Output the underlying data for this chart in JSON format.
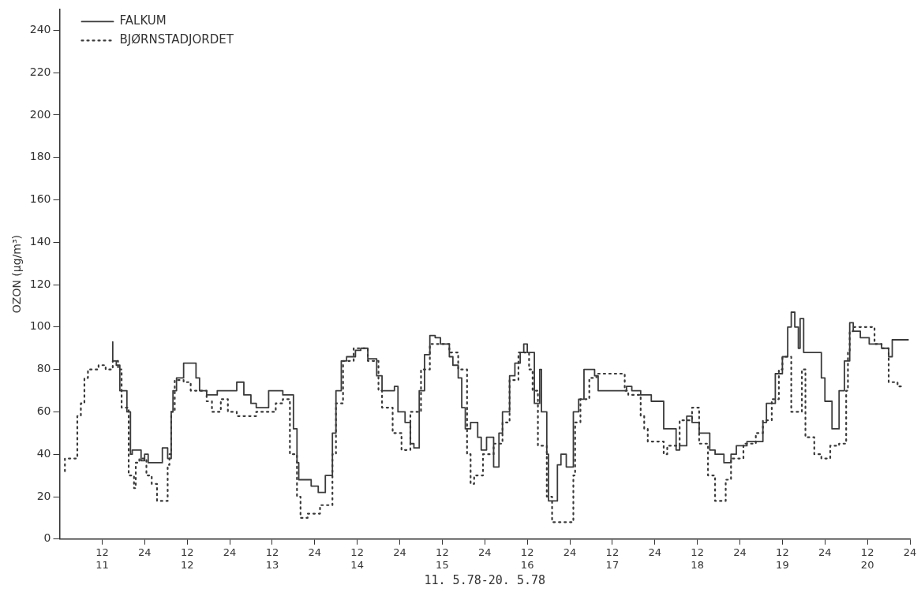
{
  "chart_data": {
    "type": "step",
    "xlabel": "11. 5.78-20. 5.78",
    "ylabel": "OZON (µg/m³)",
    "xlim": [
      "--05-11T00:00",
      "--05-21T00:00"
    ],
    "ylim": [
      0,
      250
    ],
    "xticks": [
      {
        "value": "--05-11T12:00",
        "label": "12\n11"
      },
      {
        "value": "--05-12T00:00",
        "label": "24"
      },
      {
        "value": "--05-12T12:00",
        "label": "12\n12"
      },
      {
        "value": "--05-13T00:00",
        "label": "24"
      },
      {
        "value": "--05-13T12:00",
        "label": "12\n13"
      },
      {
        "value": "--05-14T00:00",
        "label": "24"
      },
      {
        "value": "--05-14T12:00",
        "label": "12\n14"
      },
      {
        "value": "--05-15T00:00",
        "label": "24"
      },
      {
        "value": "--05-15T12:00",
        "label": "12\n15"
      },
      {
        "value": "--05-16T00:00",
        "label": "24"
      },
      {
        "value": "--05-16T12:00",
        "label": "12\n16"
      },
      {
        "value": "--05-17T00:00",
        "label": "24"
      },
      {
        "value": "--05-17T12:00",
        "label": "12\n17"
      },
      {
        "value": "--05-18T00:00",
        "label": "24"
      },
      {
        "value": "--05-18T12:00",
        "label": "12\n18"
      },
      {
        "value": "--05-19T00:00",
        "label": "24"
      },
      {
        "value": "--05-19T12:00",
        "label": "12\n19"
      },
      {
        "value": "--05-20T00:00",
        "label": "24"
      },
      {
        "value": "--05-20T12:00",
        "label": "12\n20"
      },
      {
        "value": "--05-21T00:00",
        "label": "24"
      }
    ],
    "yticks": [
      0,
      20,
      40,
      60,
      80,
      100,
      120,
      140,
      160,
      180,
      200,
      220,
      240
    ],
    "grid": false,
    "legend": "top left",
    "marker": "none",
    "series": [
      {
        "name": "FALKUM",
        "color": "#3a3a3a",
        "line_style": "solid",
        "x": [
          "--05-11T15:00",
          "--05-11T16:00",
          "--05-11T17:00",
          "--05-11T19:00",
          "--05-11T20:00",
          "--05-11T20:30",
          "--05-11T23:00",
          "--05-12T00:00",
          "--05-12T01:00",
          "--05-12T05:00",
          "--05-12T06:30",
          "--05-12T07:30",
          "--05-12T08:00",
          "--05-12T09:00",
          "--05-12T11:00",
          "--05-12T14:30",
          "--05-12T15:30",
          "--05-12T17:30",
          "--05-12T20:30",
          "--05-13T02:00",
          "--05-13T04:00",
          "--05-13T06:00",
          "--05-13T07:30",
          "--05-13T11:00",
          "--05-13T15:00",
          "--05-13T18:00",
          "--05-13T19:00",
          "--05-13T19:30",
          "--05-13T20:30",
          "--05-13T23:00",
          "--05-14T01:00",
          "--05-14T03:00",
          "--05-14T05:00",
          "--05-14T06:00",
          "--05-14T07:30",
          "--05-14T09:00",
          "--05-14T11:30",
          "--05-14T13:00",
          "--05-14T15:00",
          "--05-14T17:30",
          "--05-14T19:00",
          "--05-14T22:30",
          "--05-14T23:30",
          "--05-15T01:30",
          "--05-15T03:00",
          "--05-15T04:00",
          "--05-15T05:30",
          "--05-15T07:00",
          "--05-15T08:30",
          "--05-15T10:00",
          "--05-15T11:30",
          "--05-15T14:00",
          "--05-15T15:00",
          "--05-15T16:30",
          "--05-15T17:30",
          "--05-15T18:30",
          "--05-15T20:00",
          "--05-15T22:00",
          "--05-15T23:00",
          "--05-16T00:30",
          "--05-16T02:30",
          "--05-16T04:00",
          "--05-16T05:00",
          "--05-16T07:00",
          "--05-16T08:30",
          "--05-16T10:00",
          "--05-16T11:00",
          "--05-16T12:00",
          "--05-16T14:00",
          "--05-16T15:30",
          "--05-16T16:00",
          "--05-16T17:30",
          "--05-16T18:00",
          "--05-16T20:30",
          "--05-16T21:30",
          "--05-16T23:00",
          "--05-17T01:00",
          "--05-17T02:30",
          "--05-17T04:00",
          "--05-17T07:00",
          "--05-17T08:00",
          "--05-17T16:00",
          "--05-17T17:30",
          "--05-17T20:00",
          "--05-17T23:00",
          "--05-18T02:30",
          "--05-18T06:00",
          "--05-18T07:00",
          "--05-18T09:00",
          "--05-18T10:30",
          "--05-18T12:30",
          "--05-18T15:30",
          "--05-18T17:00",
          "--05-18T19:30",
          "--05-18T21:30",
          "--05-18T23:00",
          "--05-19T02:00",
          "--05-19T06:30",
          "--05-19T07:30",
          "--05-19T10:00",
          "--05-19T12:00",
          "--05-19T13:30",
          "--05-19T14:30",
          "--05-19T15:30",
          "--05-19T16:30",
          "--05-19T17:00",
          "--05-19T18:00",
          "--05-19T20:00",
          "--05-19T23:00",
          "--05-20T00:00",
          "--05-20T02:00",
          "--05-20T04:00",
          "--05-20T05:30",
          "--05-20T07:00",
          "--05-20T08:00",
          "--05-20T10:00",
          "--05-20T12:30",
          "--05-20T16:00",
          "--05-20T18:00",
          "--05-20T19:00",
          "--05-20T21:00",
          "--05-20T23:30"
        ],
        "values": [
          93,
          84,
          82,
          70,
          60,
          40,
          42,
          37,
          40,
          36,
          43,
          38,
          60,
          70,
          76,
          83,
          76,
          70,
          68,
          70,
          74,
          68,
          64,
          62,
          70,
          68,
          52,
          36,
          28,
          28,
          25,
          22,
          30,
          50,
          70,
          84,
          86,
          89,
          90,
          85,
          77,
          70,
          72,
          60,
          55,
          45,
          43,
          70,
          87,
          96,
          95,
          92,
          86,
          82,
          76,
          62,
          52,
          55,
          48,
          42,
          48,
          34,
          50,
          60,
          77,
          83,
          88,
          92,
          88,
          64,
          80,
          60,
          40,
          18,
          35,
          40,
          34,
          60,
          66,
          80,
          77,
          70,
          72,
          70,
          68,
          65,
          52,
          42,
          44,
          58,
          55,
          50,
          42,
          40,
          36,
          40,
          44,
          46,
          55,
          64,
          78,
          86,
          100,
          107,
          100,
          90,
          104,
          88,
          88,
          76,
          65,
          52,
          70,
          84,
          102,
          98,
          95,
          92,
          90,
          86,
          94,
          94
        ]
      },
      {
        "name": "BJØRNSTADJORDET",
        "color": "#3a3a3a",
        "line_style": "dotted",
        "x": [
          "--05-11T01:30",
          "--05-11T02:00",
          "--05-11T05:00",
          "--05-11T06:00",
          "--05-11T07:00",
          "--05-11T08:00",
          "--05-11T11:00",
          "--05-11T13:00",
          "--05-11T15:00",
          "--05-11T16:30",
          "--05-11T17:30",
          "--05-11T19:30",
          "--05-11T21:00",
          "--05-11T21:30",
          "--05-11T22:30",
          "--05-12T00:30",
          "--05-12T02:00",
          "--05-12T03:30",
          "--05-12T06:30",
          "--05-12T07:00",
          "--05-12T07:30",
          "--05-12T08:30",
          "--05-12T11:00",
          "--05-12T13:00",
          "--05-12T14:30",
          "--05-12T17:30",
          "--05-12T19:00",
          "--05-12T21:30",
          "--05-12T23:30",
          "--05-13T02:00",
          "--05-13T07:30",
          "--05-13T13:00",
          "--05-13T15:00",
          "--05-13T17:00",
          "--05-13T19:00",
          "--05-13T20:00",
          "--05-13T22:00",
          "--05-14T01:30",
          "--05-14T05:00",
          "--05-14T06:00",
          "--05-14T08:00",
          "--05-14T11:00",
          "--05-14T15:00",
          "--05-14T18:00",
          "--05-14T19:00",
          "--05-14T22:00",
          "--05-15T00:30",
          "--05-15T03:00",
          "--05-15T06:00",
          "--05-15T08:30",
          "--05-15T11:00",
          "--05-15T14:00",
          "--05-15T16:30",
          "--05-15T19:00",
          "--05-15T20:00",
          "--05-15T21:00",
          "--05-15T23:30",
          "--05-16T02:30",
          "--05-16T05:00",
          "--05-16T07:00",
          "--05-16T09:30",
          "--05-16T12:30",
          "--05-16T13:30",
          "--05-16T15:00",
          "--05-16T17:30",
          "--05-16T19:00",
          "--05-16T20:30",
          "--05-17T01:00",
          "--05-17T01:30",
          "--05-17T03:00",
          "--05-17T05:30",
          "--05-17T07:30",
          "--05-17T15:30",
          "--05-17T16:30",
          "--05-17T20:00",
          "--05-17T21:00",
          "--05-17T22:00",
          "--05-18T02:30",
          "--05-18T03:30",
          "--05-18T07:00",
          "--05-18T10:30",
          "--05-18T12:30",
          "--05-18T15:00",
          "--05-18T17:00",
          "--05-18T20:00",
          "--05-18T21:30",
          "--05-19T01:00",
          "--05-19T04:30",
          "--05-19T06:30",
          "--05-19T09:00",
          "--05-19T11:00",
          "--05-19T12:00",
          "--05-19T14:30",
          "--05-19T17:30",
          "--05-19T18:30",
          "--05-19T21:00",
          "--05-19T23:00",
          "--05-20T01:30",
          "--05-20T04:00",
          "--05-20T06:00",
          "--05-20T06:30",
          "--05-20T07:00",
          "--05-20T08:00",
          "--05-20T14:00",
          "--05-20T16:00",
          "--05-20T18:00",
          "--05-20T20:30",
          "--05-20T21:30"
        ],
        "values": [
          32,
          38,
          38,
          58,
          64,
          76,
          80,
          82,
          80,
          84,
          80,
          62,
          30,
          24,
          36,
          38,
          30,
          26,
          18,
          35,
          40,
          60,
          75,
          74,
          70,
          70,
          65,
          60,
          66,
          60,
          58,
          60,
          64,
          66,
          40,
          20,
          10,
          12,
          16,
          40,
          64,
          84,
          90,
          84,
          70,
          62,
          50,
          42,
          60,
          80,
          92,
          92,
          88,
          80,
          40,
          26,
          30,
          40,
          45,
          55,
          75,
          88,
          80,
          70,
          44,
          20,
          8,
          8,
          30,
          55,
          66,
          76,
          78,
          70,
          68,
          58,
          52,
          46,
          40,
          44,
          56,
          62,
          45,
          30,
          18,
          28,
          38,
          45,
          50,
          56,
          66,
          80,
          86,
          60,
          80,
          48,
          40,
          38,
          44,
          45,
          70,
          88,
          98,
          100,
          92,
          90,
          74,
          72
        ]
      }
    ]
  }
}
